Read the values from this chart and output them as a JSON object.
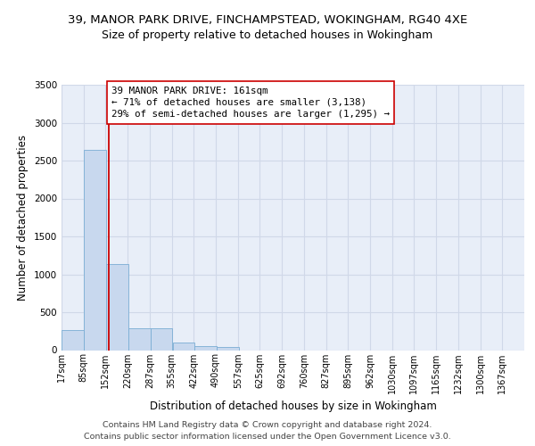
{
  "title_line1": "39, MANOR PARK DRIVE, FINCHAMPSTEAD, WOKINGHAM, RG40 4XE",
  "title_line2": "Size of property relative to detached houses in Wokingham",
  "xlabel": "Distribution of detached houses by size in Wokingham",
  "ylabel": "Number of detached properties",
  "footer_line1": "Contains HM Land Registry data © Crown copyright and database right 2024.",
  "footer_line2": "Contains public sector information licensed under the Open Government Licence v3.0.",
  "annotation_line1": "39 MANOR PARK DRIVE: 161sqm",
  "annotation_line2": "← 71% of detached houses are smaller (3,138)",
  "annotation_line3": "29% of semi-detached houses are larger (1,295) →",
  "bar_left_edges": [
    17,
    85,
    152,
    220,
    287,
    355,
    422,
    490,
    557,
    625,
    692,
    760,
    827,
    895,
    962,
    1030,
    1097,
    1165,
    1232,
    1300
  ],
  "bar_heights": [
    270,
    2640,
    1140,
    285,
    285,
    100,
    55,
    40,
    0,
    0,
    0,
    0,
    0,
    0,
    0,
    0,
    0,
    0,
    0,
    0
  ],
  "bin_width": 67,
  "bar_color": "#c8d8ee",
  "bar_edge_color": "#7aadd4",
  "red_line_x": 161,
  "ylim": [
    0,
    3500
  ],
  "yticks": [
    0,
    500,
    1000,
    1500,
    2000,
    2500,
    3000,
    3500
  ],
  "tick_labels": [
    "17sqm",
    "85sqm",
    "152sqm",
    "220sqm",
    "287sqm",
    "355sqm",
    "422sqm",
    "490sqm",
    "557sqm",
    "625sqm",
    "692sqm",
    "760sqm",
    "827sqm",
    "895sqm",
    "962sqm",
    "1030sqm",
    "1097sqm",
    "1165sqm",
    "1232sqm",
    "1300sqm",
    "1367sqm"
  ],
  "background_color": "#e8eef8",
  "grid_color": "#d0d8e8",
  "title_fontsize": 9.5,
  "subtitle_fontsize": 9.0,
  "axis_label_fontsize": 8.5,
  "tick_fontsize": 7.0,
  "annotation_fontsize": 7.8,
  "footer_fontsize": 6.8
}
